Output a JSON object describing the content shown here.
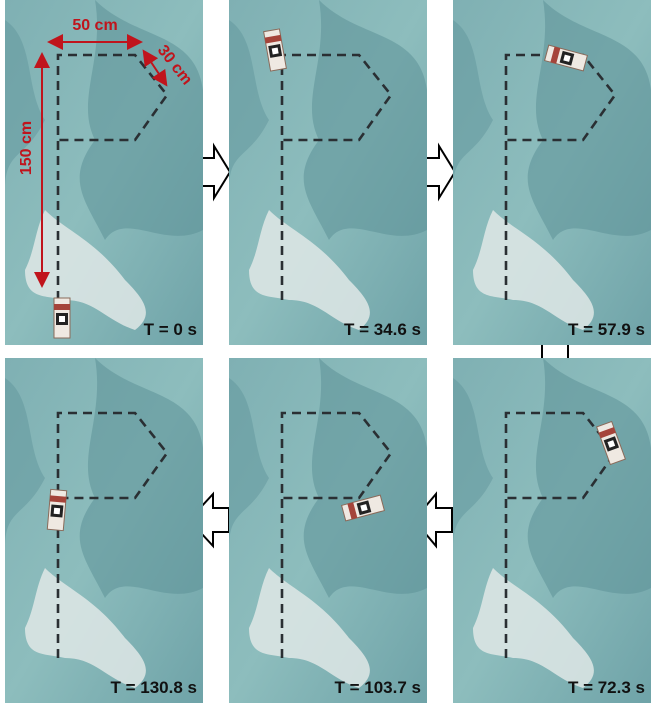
{
  "dimensions": {
    "width": "50 cm",
    "side": "30 cm",
    "height": "150 cm"
  },
  "panels": [
    {
      "time": "T = 0 s"
    },
    {
      "time": "T = 34.6 s"
    },
    {
      "time": "T = 57.9 s"
    },
    {
      "time": "T = 72.3 s"
    },
    {
      "time": "T = 103.7 s"
    },
    {
      "time": "T = 130.8 s"
    }
  ]
}
